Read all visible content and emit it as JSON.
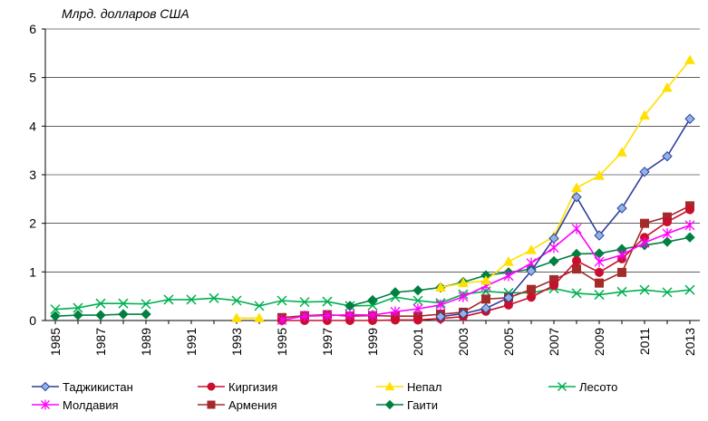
{
  "chart_data": {
    "type": "line",
    "title": "",
    "ylabel": "Млрд. долларов США",
    "xlabel": "",
    "ylim": [
      0,
      6
    ],
    "xlim": [
      1985,
      2013
    ],
    "yticks": [
      "0",
      "1",
      "2",
      "3",
      "4",
      "5",
      "6"
    ],
    "xticks": [
      "1985",
      "1987",
      "1989",
      "1991",
      "1993",
      "1995",
      "1997",
      "1999",
      "2001",
      "2003",
      "2005",
      "2007",
      "2009",
      "2011",
      "2013"
    ],
    "legend_position": "bottom",
    "series": [
      {
        "name": "Таджикистан",
        "color": "#2f3f9c",
        "marker": "diamond",
        "marker_fill": "#8fb4e6",
        "x": [
          2002,
          2003,
          2004,
          2005,
          2006,
          2007,
          2008,
          2009,
          2010,
          2011,
          2012,
          2013
        ],
        "y": [
          0.08,
          0.14,
          0.25,
          0.47,
          1.02,
          1.69,
          2.54,
          1.75,
          2.31,
          3.06,
          3.38,
          4.15
        ]
      },
      {
        "name": "Киргизия",
        "color": "#c8102e",
        "marker": "circle",
        "marker_fill": "#c8102e",
        "x": [
          1995,
          1996,
          1997,
          1998,
          1999,
          2000,
          2001,
          2002,
          2003,
          2004,
          2005,
          2006,
          2007,
          2008,
          2009,
          2010,
          2011,
          2012,
          2013
        ],
        "y": [
          0.0,
          0.0,
          0.0,
          0.0,
          0.0,
          0.01,
          0.01,
          0.04,
          0.08,
          0.19,
          0.32,
          0.48,
          0.72,
          1.23,
          0.99,
          1.27,
          1.71,
          2.03,
          2.28
        ]
      },
      {
        "name": "Непал",
        "color": "#ffe000",
        "marker": "triangle",
        "marker_fill": "#ffe000",
        "x": [
          1993,
          1994,
          2002,
          2003,
          2004,
          2005,
          2006,
          2007,
          2008,
          2009,
          2010,
          2011,
          2012,
          2013
        ],
        "y": [
          0.05,
          0.05,
          0.68,
          0.77,
          0.82,
          1.21,
          1.45,
          1.73,
          2.73,
          2.98,
          3.46,
          4.22,
          4.79,
          5.36
        ]
      },
      {
        "name": "Лесото",
        "color": "#00b050",
        "marker": "x",
        "marker_fill": "none",
        "x": [
          1985,
          1986,
          1987,
          1988,
          1989,
          1990,
          1991,
          1992,
          1993,
          1994,
          1995,
          1996,
          1997,
          1998,
          1999,
          2000,
          2001,
          2002,
          2003,
          2004,
          2005,
          2006,
          2007,
          2008,
          2009,
          2010,
          2011,
          2012,
          2013
        ],
        "y": [
          0.23,
          0.26,
          0.35,
          0.35,
          0.34,
          0.43,
          0.43,
          0.46,
          0.41,
          0.3,
          0.41,
          0.38,
          0.39,
          0.3,
          0.31,
          0.48,
          0.41,
          0.36,
          0.54,
          0.6,
          0.57,
          0.57,
          0.66,
          0.56,
          0.53,
          0.59,
          0.63,
          0.58,
          0.63
        ]
      },
      {
        "name": "Молдавия",
        "color": "#ff00ff",
        "marker": "star",
        "marker_fill": "none",
        "x": [
          1995,
          1996,
          1997,
          1998,
          1999,
          2000,
          2001,
          2002,
          2003,
          2004,
          2005,
          2006,
          2007,
          2008,
          2009,
          2010,
          2011,
          2012,
          2013
        ],
        "y": [
          0.01,
          0.09,
          0.1,
          0.12,
          0.11,
          0.18,
          0.24,
          0.32,
          0.49,
          0.71,
          0.92,
          1.18,
          1.5,
          1.89,
          1.21,
          1.35,
          1.6,
          1.79,
          1.96
        ]
      },
      {
        "name": "Армения",
        "color": "#a52a2a",
        "marker": "square",
        "marker_fill": "#a52a2a",
        "x": [
          1995,
          1996,
          1997,
          1998,
          1999,
          2000,
          2001,
          2002,
          2003,
          2004,
          2005,
          2006,
          2007,
          2008,
          2009,
          2010,
          2011,
          2012,
          2013
        ],
        "y": [
          0.06,
          0.1,
          0.12,
          0.09,
          0.1,
          0.09,
          0.09,
          0.13,
          0.17,
          0.44,
          0.47,
          0.64,
          0.84,
          1.06,
          0.77,
          0.99,
          2.0,
          2.13,
          2.36
        ]
      },
      {
        "name": "Гаити",
        "color": "#008040",
        "marker": "diamond",
        "marker_fill": "#008040",
        "x": [
          1985,
          1986,
          1987,
          1988,
          1989,
          1998,
          1999,
          2000,
          2001,
          2002,
          2003,
          2004,
          2005,
          2006,
          2007,
          2008,
          2009,
          2010,
          2011,
          2012,
          2013
        ],
        "y": [
          0.09,
          0.11,
          0.11,
          0.13,
          0.13,
          0.3,
          0.42,
          0.58,
          0.62,
          0.68,
          0.79,
          0.93,
          0.99,
          1.06,
          1.22,
          1.37,
          1.38,
          1.47,
          1.55,
          1.62,
          1.71
        ]
      }
    ]
  }
}
